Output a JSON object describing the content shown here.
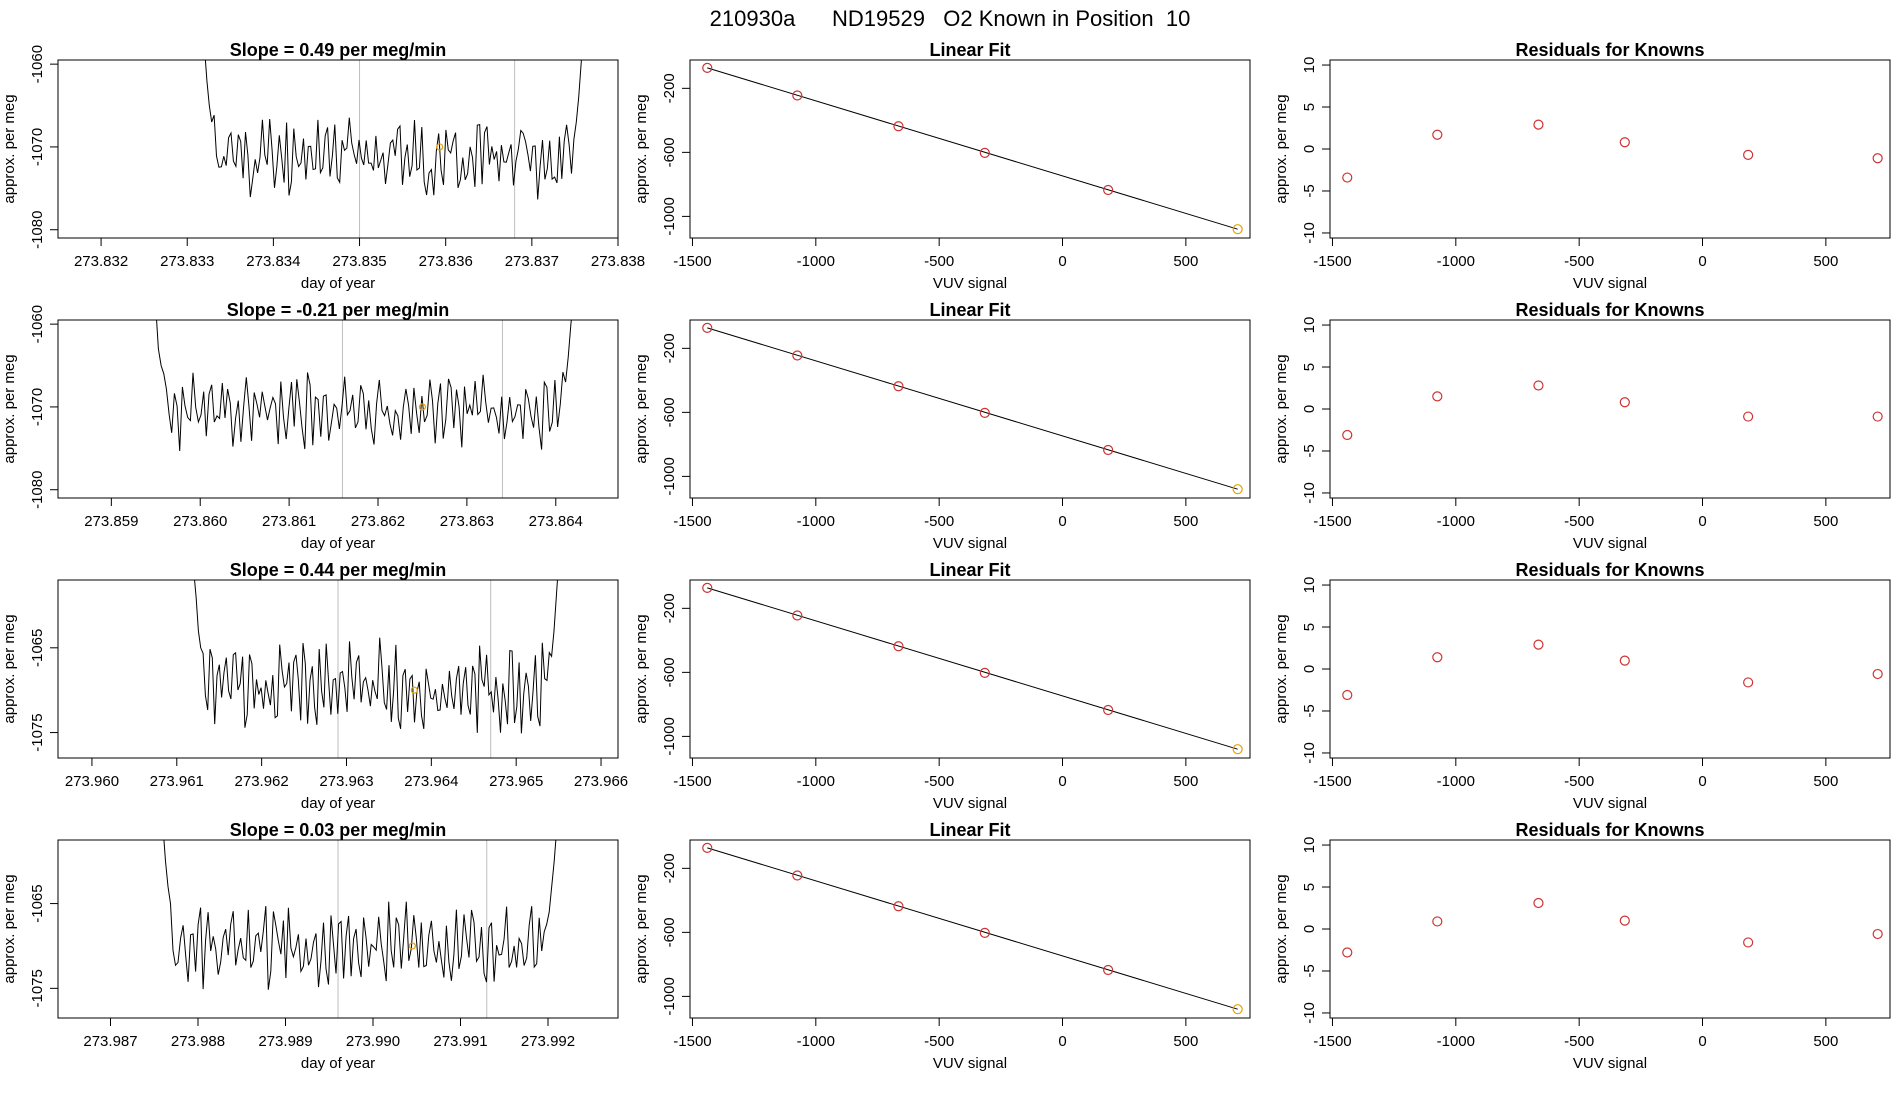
{
  "figure_title": "210930a      ND19529   O2 Known in Position  10",
  "chart_data": [
    {
      "type": "line",
      "panel": "ts-1",
      "title": "Slope =  0.49  per meg/min",
      "xlabel": "day of year",
      "ylabel": "approx. per meg",
      "xlim": [
        273.8315,
        273.838
      ],
      "ylim": [
        -1081,
        -1059.5
      ],
      "xticks": [
        "273.832",
        "273.833",
        "273.834",
        "273.835",
        "273.836",
        "273.837",
        "273.838"
      ],
      "yticks": [
        "-1060",
        "-1070",
        "-1080"
      ],
      "vlines": [
        273.835,
        273.8368
      ],
      "marker": {
        "x": 273.83593,
        "y": -1070
      },
      "line_color": "#000000",
      "marker_color": "#e69f00",
      "vline_color": "#bebebe",
      "x_start": 273.8332,
      "x_end": 273.8376,
      "series": {
        "name": "signal",
        "base": -1071,
        "amp": 3,
        "seed": 11,
        "lead": [
          -1058,
          -1062,
          -1065,
          -1067
        ],
        "tail": [
          -1067,
          -1064,
          -1060,
          -1056
        ]
      }
    },
    {
      "type": "line",
      "panel": "ts-2",
      "title": "Slope =  -0.21  per meg/min",
      "xlabel": "day of year",
      "ylabel": "approx. per meg",
      "xlim": [
        273.8584,
        273.8647
      ],
      "ylim": [
        -1081,
        -1059.5
      ],
      "xticks": [
        "273.859",
        "273.860",
        "273.861",
        "273.862",
        "273.863",
        "273.864"
      ],
      "yticks": [
        "-1060",
        "-1070",
        "-1080"
      ],
      "vlines": [
        273.8616,
        273.8634
      ],
      "marker": {
        "x": 273.8625,
        "y": -1070
      },
      "line_color": "#000000",
      "marker_color": "#e69f00",
      "vline_color": "#bebebe",
      "x_start": 273.8595,
      "x_end": 273.8642,
      "series": {
        "name": "signal",
        "base": -1070.5,
        "amp": 2.8,
        "seed": 23,
        "lead": [
          -1058,
          -1063,
          -1065,
          -1066
        ],
        "tail": [
          -1067,
          -1064,
          -1060,
          -1057
        ]
      }
    },
    {
      "type": "line",
      "panel": "ts-3",
      "title": "Slope =  0.44  per meg/min",
      "xlabel": "day of year",
      "ylabel": "approx. per meg",
      "xlim": [
        273.9596,
        273.9662
      ],
      "ylim": [
        -1078,
        -1057
      ],
      "xticks": [
        "273.960",
        "273.961",
        "273.962",
        "273.963",
        "273.964",
        "273.965",
        "273.966"
      ],
      "yticks": [
        "-1065",
        "-1075"
      ],
      "vlines": [
        273.9629,
        273.9647
      ],
      "marker": {
        "x": 273.9638,
        "y": -1070
      },
      "line_color": "#000000",
      "marker_color": "#e69f00",
      "vline_color": "#bebebe",
      "x_start": 273.9612,
      "x_end": 273.9655,
      "series": {
        "name": "signal",
        "base": -1069.5,
        "amp": 3.2,
        "seed": 37,
        "lead": [
          -1056,
          -1059,
          -1063,
          -1065
        ],
        "tail": [
          -1066,
          -1063,
          -1059,
          -1055
        ]
      }
    },
    {
      "type": "line",
      "panel": "ts-4",
      "title": "Slope =  0.03  per meg/min",
      "xlabel": "day of year",
      "ylabel": "approx. per meg",
      "xlim": [
        273.9864,
        273.9928
      ],
      "ylim": [
        -1078.5,
        -1057.5
      ],
      "xticks": [
        "273.987",
        "273.988",
        "273.989",
        "273.990",
        "273.991",
        "273.992"
      ],
      "yticks": [
        "-1065",
        "-1075"
      ],
      "vlines": [
        273.9896,
        273.9913
      ],
      "marker": {
        "x": 273.99045,
        "y": -1070
      },
      "line_color": "#000000",
      "marker_color": "#e69f00",
      "vline_color": "#bebebe",
      "x_start": 273.9876,
      "x_end": 273.9921,
      "series": {
        "name": "signal",
        "base": -1070,
        "amp": 3,
        "seed": 53,
        "lead": [
          -1056,
          -1060,
          -1063,
          -1065
        ],
        "tail": [
          -1066,
          -1063,
          -1060,
          -1056
        ]
      }
    },
    {
      "type": "scatter",
      "panel": "fit-1",
      "title": "Linear Fit",
      "xlabel": "VUV signal",
      "ylabel": "approx. per meg",
      "xlim": [
        -1510,
        760
      ],
      "ylim": [
        -1135,
        -23
      ],
      "xticks": [
        "-1500",
        "-1000",
        "-500",
        "0",
        "500"
      ],
      "yticks": [
        "-200",
        "-600",
        "-1000"
      ],
      "x": [
        -1440,
        -1075,
        -665,
        -315,
        185,
        710
      ],
      "y": [
        -72,
        -245,
        -437,
        -603,
        -835,
        -1080
      ],
      "fit_line": [
        [
          -1440,
          -72
        ],
        [
          710,
          -1080
        ]
      ],
      "point_colors": [
        "#cd3333",
        "#cd3333",
        "#cd3333",
        "#cd3333",
        "#cd3333",
        "#e69f00"
      ]
    },
    {
      "type": "scatter",
      "panel": "fit-2",
      "title": "Linear Fit",
      "xlabel": "VUV signal",
      "ylabel": "approx. per meg",
      "xlim": [
        -1510,
        760
      ],
      "ylim": [
        -1135,
        -23
      ],
      "xticks": [
        "-1500",
        "-1000",
        "-500",
        "0",
        "500"
      ],
      "yticks": [
        "-200",
        "-600",
        "-1000"
      ],
      "x": [
        -1440,
        -1075,
        -665,
        -315,
        185,
        710
      ],
      "y": [
        -72,
        -245,
        -437,
        -603,
        -835,
        -1080
      ],
      "fit_line": [
        [
          -1440,
          -72
        ],
        [
          710,
          -1080
        ]
      ],
      "point_colors": [
        "#cd3333",
        "#cd3333",
        "#cd3333",
        "#cd3333",
        "#cd3333",
        "#e69f00"
      ]
    },
    {
      "type": "scatter",
      "panel": "fit-3",
      "title": "Linear Fit",
      "xlabel": "VUV signal",
      "ylabel": "approx. per meg",
      "xlim": [
        -1510,
        760
      ],
      "ylim": [
        -1135,
        -23
      ],
      "xticks": [
        "-1500",
        "-1000",
        "-500",
        "0",
        "500"
      ],
      "yticks": [
        "-200",
        "-600",
        "-1000"
      ],
      "x": [
        -1440,
        -1075,
        -665,
        -315,
        185,
        710
      ],
      "y": [
        -72,
        -245,
        -437,
        -603,
        -835,
        -1080
      ],
      "fit_line": [
        [
          -1440,
          -72
        ],
        [
          710,
          -1080
        ]
      ],
      "point_colors": [
        "#cd3333",
        "#cd3333",
        "#cd3333",
        "#cd3333",
        "#cd3333",
        "#e69f00"
      ]
    },
    {
      "type": "scatter",
      "panel": "fit-4",
      "title": "Linear Fit",
      "xlabel": "VUV signal",
      "ylabel": "approx. per meg",
      "xlim": [
        -1510,
        760
      ],
      "ylim": [
        -1135,
        -23
      ],
      "xticks": [
        "-1500",
        "-1000",
        "-500",
        "0",
        "500"
      ],
      "yticks": [
        "-200",
        "-600",
        "-1000"
      ],
      "x": [
        -1440,
        -1075,
        -665,
        -315,
        185,
        710
      ],
      "y": [
        -72,
        -245,
        -437,
        -603,
        -835,
        -1080
      ],
      "fit_line": [
        [
          -1440,
          -72
        ],
        [
          710,
          -1080
        ]
      ],
      "point_colors": [
        "#cd3333",
        "#cd3333",
        "#cd3333",
        "#cd3333",
        "#cd3333",
        "#e69f00"
      ]
    },
    {
      "type": "scatter",
      "panel": "res-1",
      "title": "Residuals for Knowns",
      "xlabel": "VUV signal",
      "ylabel": "approx. per meg",
      "xlim": [
        -1510,
        760
      ],
      "ylim": [
        -10.6,
        10.6
      ],
      "xticks": [
        "-1500",
        "-1000",
        "-500",
        "0",
        "500"
      ],
      "yticks": [
        "10",
        "5",
        "0",
        "-5",
        "-10"
      ],
      "x": [
        -1440,
        -1075,
        -665,
        -315,
        185,
        710
      ],
      "y": [
        -3.4,
        1.7,
        2.9,
        0.8,
        -0.7,
        -1.1
      ],
      "point_color": "#cd3333"
    },
    {
      "type": "scatter",
      "panel": "res-2",
      "title": "Residuals for Knowns",
      "xlabel": "VUV signal",
      "ylabel": "approx. per meg",
      "xlim": [
        -1510,
        760
      ],
      "ylim": [
        -10.6,
        10.6
      ],
      "xticks": [
        "-1500",
        "-1000",
        "-500",
        "0",
        "500"
      ],
      "yticks": [
        "10",
        "5",
        "0",
        "-5",
        "-10"
      ],
      "x": [
        -1440,
        -1075,
        -665,
        -315,
        185,
        710
      ],
      "y": [
        -3.1,
        1.5,
        2.8,
        0.8,
        -0.9,
        -0.9
      ],
      "point_color": "#cd3333"
    },
    {
      "type": "scatter",
      "panel": "res-3",
      "title": "Residuals for Knowns",
      "xlabel": "VUV signal",
      "ylabel": "approx. per meg",
      "xlim": [
        -1510,
        760
      ],
      "ylim": [
        -10.6,
        10.6
      ],
      "xticks": [
        "-1500",
        "-1000",
        "-500",
        "0",
        "500"
      ],
      "yticks": [
        "10",
        "5",
        "0",
        "-5",
        "-10"
      ],
      "x": [
        -1440,
        -1075,
        -665,
        -315,
        185,
        710
      ],
      "y": [
        -3.1,
        1.4,
        2.9,
        1.0,
        -1.6,
        -0.6
      ],
      "point_color": "#cd3333"
    },
    {
      "type": "scatter",
      "panel": "res-4",
      "title": "Residuals for Knowns",
      "xlabel": "VUV signal",
      "ylabel": "approx. per meg",
      "xlim": [
        -1510,
        760
      ],
      "ylim": [
        -10.6,
        10.6
      ],
      "xticks": [
        "-1500",
        "-1000",
        "-500",
        "0",
        "500"
      ],
      "yticks": [
        "10",
        "5",
        "0",
        "-5",
        "-10"
      ],
      "x": [
        -1440,
        -1075,
        -665,
        -315,
        185,
        710
      ],
      "y": [
        -2.8,
        0.9,
        3.1,
        1.0,
        -1.6,
        -0.6
      ],
      "point_color": "#cd3333"
    }
  ]
}
